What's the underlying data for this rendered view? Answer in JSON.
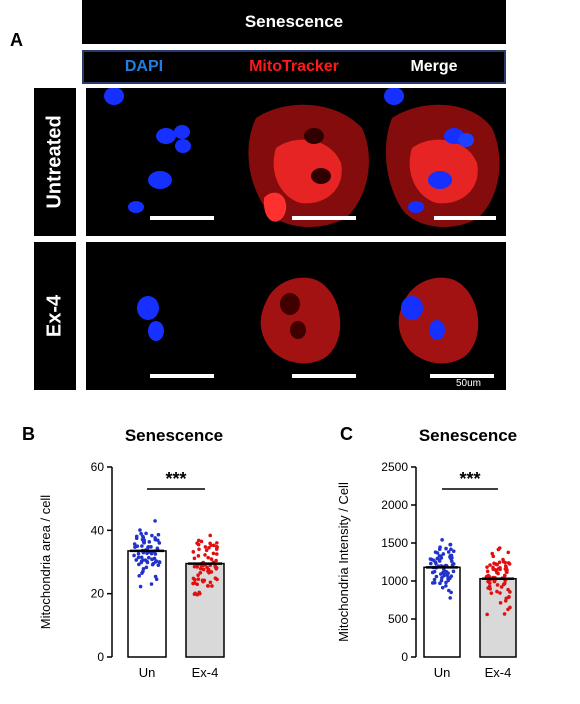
{
  "panel_a": {
    "letter": "A",
    "condition": "Senescence",
    "channels": [
      {
        "label": "DAPI",
        "color": "#1e7fe0"
      },
      {
        "label": "MitoTracker",
        "color": "#ff1a1a"
      },
      {
        "label": "Merge",
        "color": "#ffffff"
      }
    ],
    "rows": [
      "Untreated",
      "Ex-4"
    ],
    "scale_label": "50um"
  },
  "chart_data": [
    {
      "type": "bar",
      "panel": "B",
      "title": "Senescence",
      "categories": [
        "Un",
        "Ex-4"
      ],
      "values": [
        33.5,
        29.5
      ],
      "ylabel": "Mitochondria area / cell",
      "ylim": [
        0,
        60
      ],
      "yticks": [
        0,
        20,
        40,
        60
      ],
      "significance": "***",
      "bar_fill": [
        "#ffffff",
        "#d9d9d9"
      ],
      "point_colors": [
        "#2233cc",
        "#e01010"
      ]
    },
    {
      "type": "bar",
      "panel": "C",
      "title": "Senescence",
      "categories": [
        "Un",
        "Ex-4"
      ],
      "values": [
        1180,
        1030
      ],
      "ylabel": "Mitochondria Intensity / Cell",
      "ylim": [
        0,
        2500
      ],
      "yticks": [
        0,
        500,
        1000,
        1500,
        2000,
        2500
      ],
      "significance": "***",
      "bar_fill": [
        "#ffffff",
        "#d9d9d9"
      ],
      "point_colors": [
        "#2233cc",
        "#e01010"
      ]
    }
  ]
}
